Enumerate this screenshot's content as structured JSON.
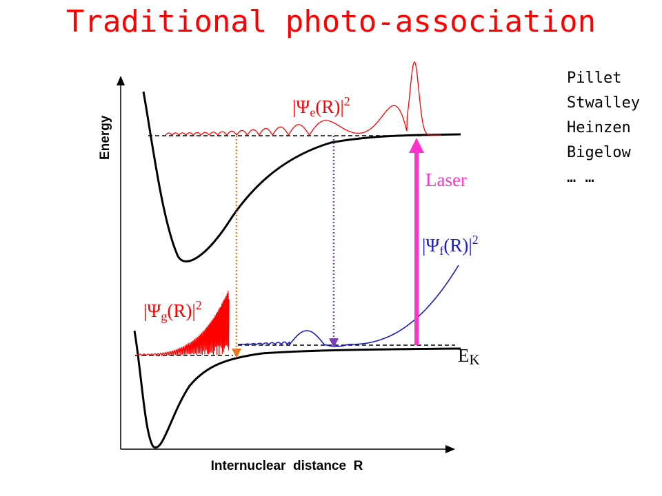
{
  "title": "Traditional photo-association",
  "names": [
    "Pillet",
    "Stwalley",
    "Heinzen",
    "Bigelow",
    "… …"
  ],
  "axes": {
    "y_label": "Energy",
    "x_label": "Internuclear  distance  R"
  },
  "labels": {
    "laser": "Laser",
    "ek_main": "E",
    "ek_sub": "K",
    "psi_e": {
      "pre": "|Ψ",
      "sub": "e",
      "mid": "(R)|",
      "sup": "2"
    },
    "psi_g": {
      "pre": "|Ψ",
      "sub": "g",
      "mid": "(R)|",
      "sup": "2"
    },
    "psi_f": {
      "pre": "|Ψ",
      "sub": "f",
      "mid": "(R)|",
      "sup": "2"
    }
  },
  "colors": {
    "title": "#ff0000",
    "excited_wave": "#ff0000",
    "ground_wave": "#ff0000",
    "free_wave": "#1a1acc",
    "laser": "#ff33cc",
    "orange_arrow": "#e87722",
    "purple_arrow": "#7a3fc0"
  }
}
